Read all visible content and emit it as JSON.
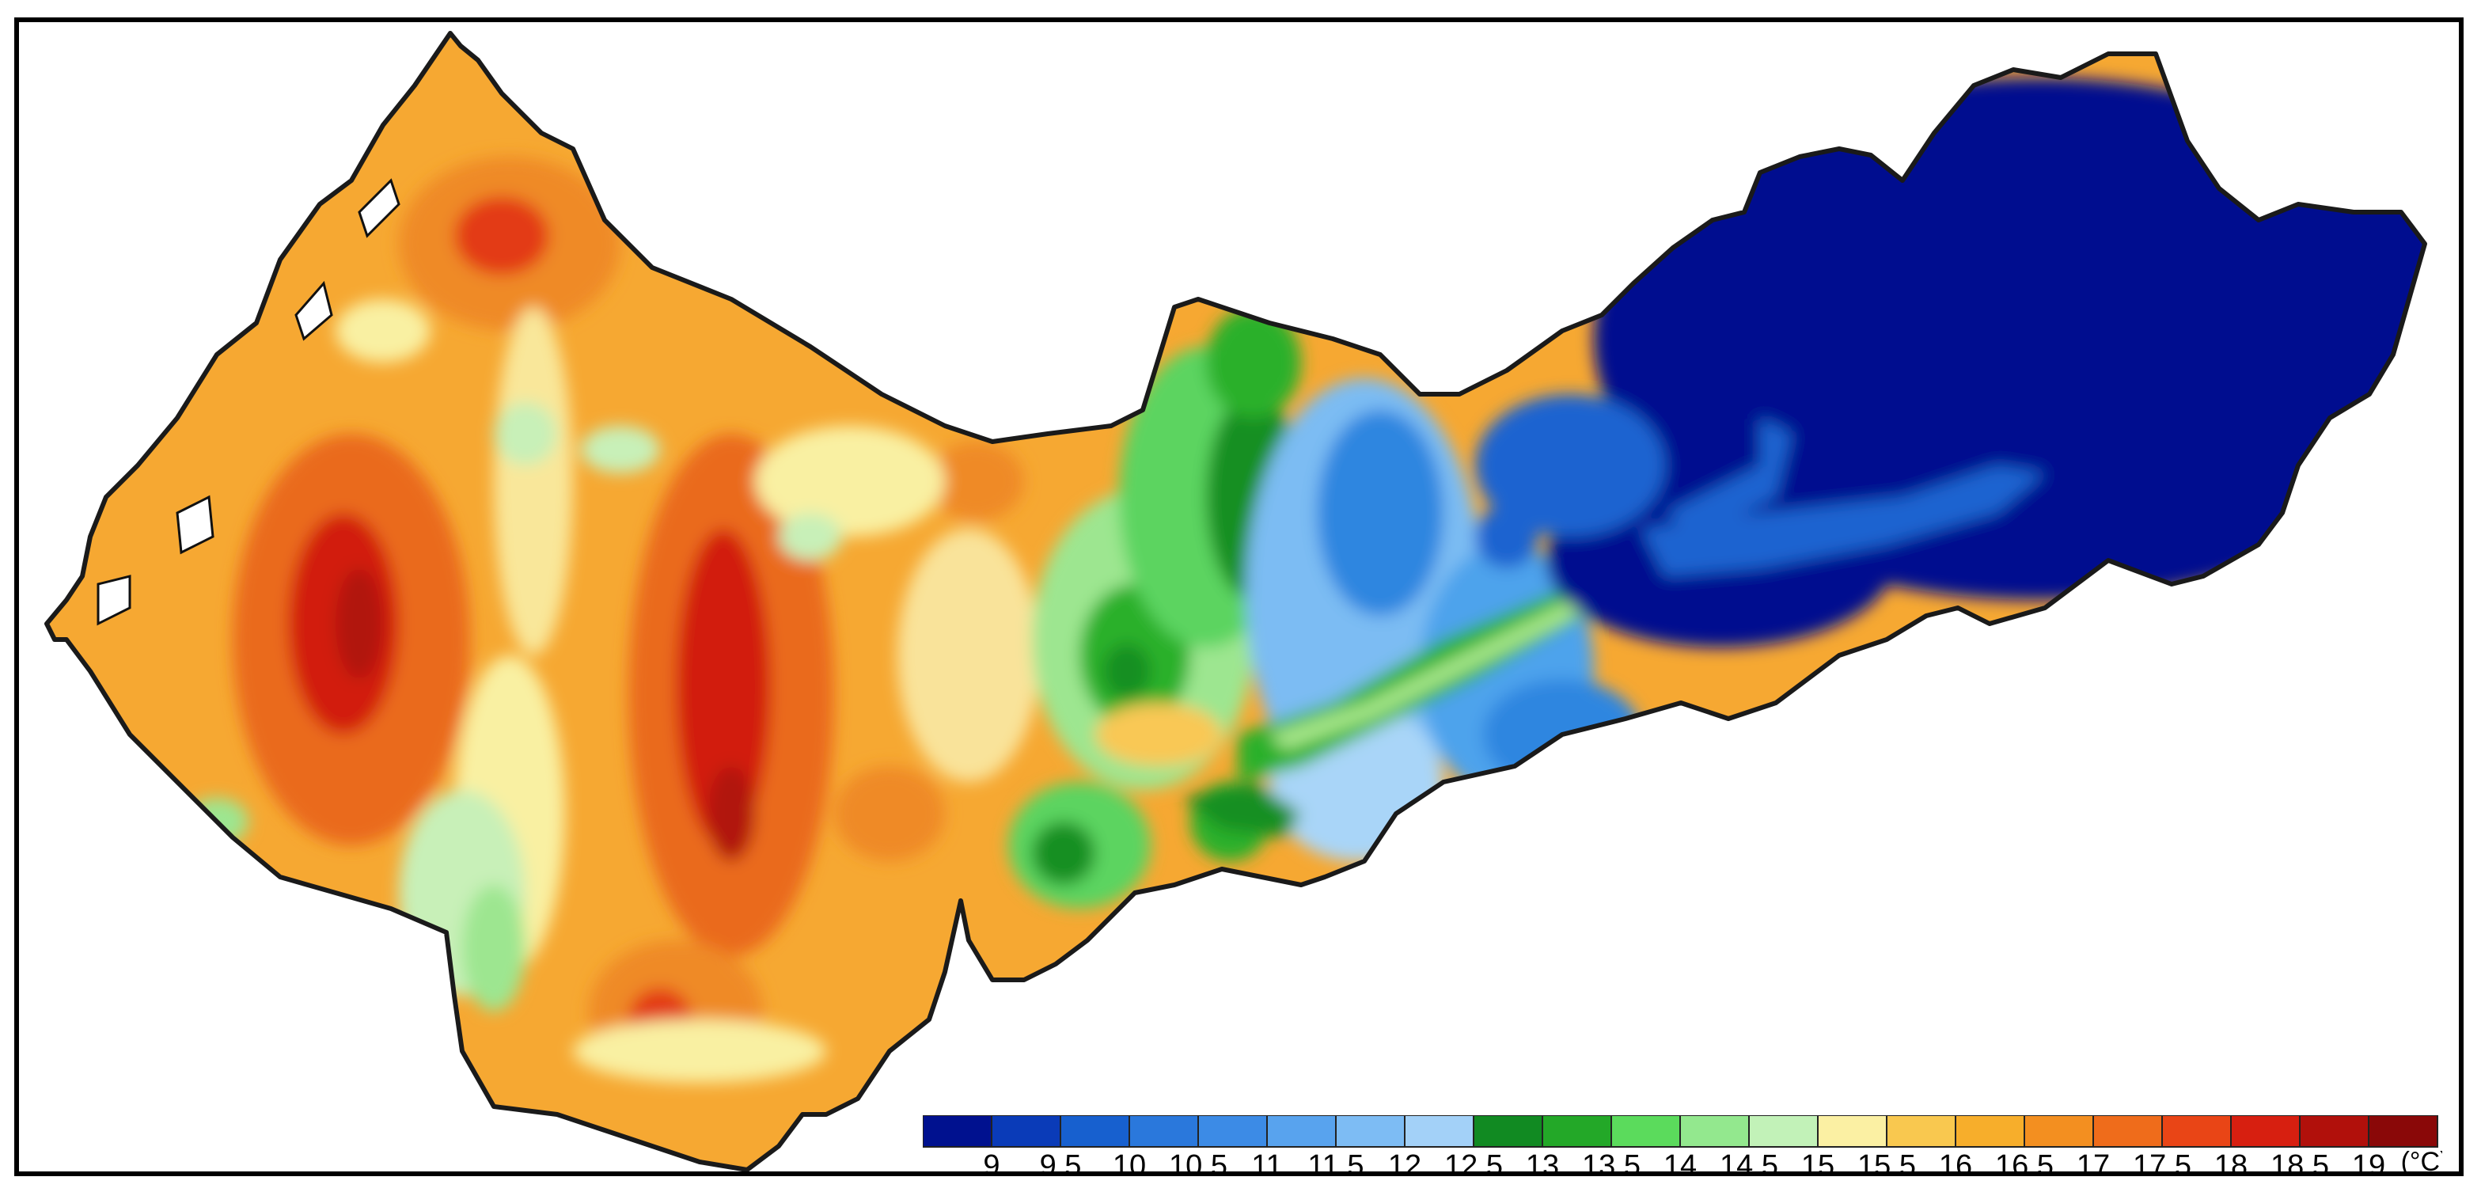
{
  "map": {
    "type": "filled-contour",
    "variable": "temperature",
    "unit": "(°C)",
    "regions": {
      "warm_west": {
        "range": [
          15.5,
          19
        ],
        "colors": [
          "#f9f0a2",
          "#f9c855",
          "#f5aa2e",
          "#ef8a27",
          "#ea6a1f",
          "#e33b15",
          "#d21f0d",
          "#b1120b"
        ]
      },
      "transition": {
        "range": [
          12.5,
          15
        ],
        "colors": [
          "#168f24",
          "#2ab02a",
          "#5cd460",
          "#9de690",
          "#c8f0b8"
        ]
      },
      "cool_mid": {
        "range": [
          9.5,
          12.5
        ],
        "colors": [
          "#1e63d0",
          "#2f86e0",
          "#4ea3ec",
          "#7bbcf3",
          "#a9d5f8"
        ]
      },
      "cold_east": {
        "range": [
          9,
          9.5
        ],
        "colors": [
          "#00118f"
        ]
      }
    }
  },
  "colorbar": {
    "levels": [
      "9",
      "9.5",
      "10",
      "10.5",
      "11",
      "11.5",
      "12",
      "12.5",
      "13",
      "13.5",
      "14",
      "14.5",
      "15",
      "15.5",
      "16",
      "16.5",
      "17",
      "17.5",
      "18",
      "18.5",
      "19"
    ],
    "colors": [
      "#00118f",
      "#0a3bb8",
      "#1760cf",
      "#2a78dc",
      "#3c8be6",
      "#58a3ee",
      "#7dbcf4",
      "#a3d1f8",
      "#118a22",
      "#23a828",
      "#5bdb5c",
      "#93e88e",
      "#c2f2b8",
      "#fbf0a3",
      "#f9c84f",
      "#f7ae2b",
      "#f38f20",
      "#ef6c1b",
      "#e94516",
      "#d71f10",
      "#b1100b",
      "#8a0808"
    ]
  }
}
